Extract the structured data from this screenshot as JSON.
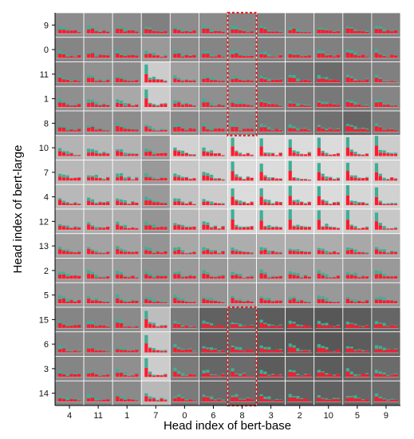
{
  "chart_data": {
    "type": "heatmap",
    "title": "",
    "xlabel": "Head index of bert-base",
    "ylabel": "Head index of bert-large",
    "x_categories": [
      "4",
      "11",
      "1",
      "7",
      "0",
      "6",
      "8",
      "3",
      "2",
      "10",
      "5",
      "9"
    ],
    "y_categories": [
      "9",
      "0",
      "11",
      "1",
      "8",
      "10",
      "7",
      "4",
      "12",
      "13",
      "2",
      "5",
      "15",
      "6",
      "3",
      "14"
    ],
    "highlighted_column": "8",
    "highlighted_rows_top": [
      "9",
      "0",
      "11",
      "1",
      "8"
    ],
    "highlighted_rows_bottom": [
      "15",
      "6",
      "3",
      "14"
    ],
    "cell_gray_levels": [
      [
        0.55,
        0.56,
        0.54,
        0.5,
        0.55,
        0.54,
        0.52,
        0.5,
        0.52,
        0.5,
        0.48,
        0.5
      ],
      [
        0.52,
        0.54,
        0.53,
        0.6,
        0.55,
        0.52,
        0.53,
        0.5,
        0.52,
        0.5,
        0.5,
        0.5
      ],
      [
        0.52,
        0.57,
        0.55,
        0.8,
        0.62,
        0.55,
        0.54,
        0.48,
        0.45,
        0.42,
        0.48,
        0.5
      ],
      [
        0.56,
        0.6,
        0.66,
        0.8,
        0.62,
        0.56,
        0.55,
        0.5,
        0.48,
        0.47,
        0.48,
        0.52
      ],
      [
        0.54,
        0.56,
        0.55,
        0.62,
        0.54,
        0.54,
        0.53,
        0.48,
        0.46,
        0.44,
        0.4,
        0.48
      ],
      [
        0.7,
        0.72,
        0.7,
        0.6,
        0.82,
        0.8,
        0.86,
        0.86,
        0.86,
        0.86,
        0.84,
        0.8
      ],
      [
        0.72,
        0.72,
        0.72,
        0.6,
        0.78,
        0.8,
        0.86,
        0.86,
        0.86,
        0.86,
        0.84,
        0.82
      ],
      [
        0.72,
        0.72,
        0.72,
        0.6,
        0.76,
        0.8,
        0.86,
        0.86,
        0.86,
        0.86,
        0.84,
        0.82
      ],
      [
        0.68,
        0.68,
        0.68,
        0.58,
        0.72,
        0.76,
        0.84,
        0.82,
        0.82,
        0.82,
        0.8,
        0.78
      ],
      [
        0.62,
        0.64,
        0.64,
        0.58,
        0.66,
        0.66,
        0.68,
        0.68,
        0.68,
        0.68,
        0.66,
        0.66
      ],
      [
        0.6,
        0.6,
        0.6,
        0.56,
        0.6,
        0.6,
        0.62,
        0.62,
        0.62,
        0.62,
        0.6,
        0.6
      ],
      [
        0.58,
        0.58,
        0.58,
        0.56,
        0.58,
        0.58,
        0.6,
        0.6,
        0.6,
        0.6,
        0.58,
        0.58
      ],
      [
        0.52,
        0.52,
        0.54,
        0.74,
        0.48,
        0.38,
        0.4,
        0.36,
        0.35,
        0.34,
        0.36,
        0.4
      ],
      [
        0.52,
        0.52,
        0.54,
        0.78,
        0.46,
        0.38,
        0.4,
        0.36,
        0.35,
        0.34,
        0.36,
        0.4
      ],
      [
        0.52,
        0.54,
        0.56,
        0.8,
        0.48,
        0.4,
        0.42,
        0.36,
        0.38,
        0.36,
        0.38,
        0.42
      ],
      [
        0.52,
        0.52,
        0.54,
        0.72,
        0.48,
        0.42,
        0.42,
        0.38,
        0.38,
        0.38,
        0.4,
        0.42
      ]
    ],
    "bar_series": [
      {
        "name": "",
        "color": "#ff1a2e"
      },
      {
        "name": "",
        "color": "#3fae94"
      }
    ],
    "grid": true,
    "legend": "none"
  }
}
